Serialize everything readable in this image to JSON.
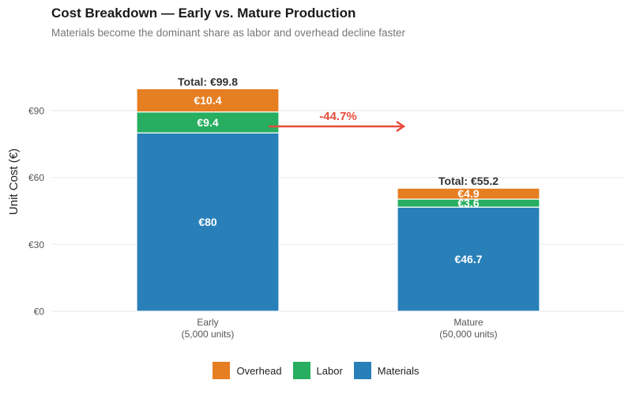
{
  "chart_data": {
    "type": "bar",
    "stacked": true,
    "title": "Cost Breakdown — Early vs. Mature Production",
    "subtitle": "Materials become the dominant share as labor and overhead decline faster",
    "xlabel": "",
    "ylabel": "Unit Cost (€)",
    "ylim": [
      0,
      105
    ],
    "yticks": [
      0,
      30,
      60,
      90
    ],
    "ytick_labels": [
      "€0",
      "€30",
      "€60",
      "€90"
    ],
    "grid": true,
    "legend_position": "bottom",
    "categories": [
      "Early",
      "Mature"
    ],
    "category_sublabels": [
      "(5,000 units)",
      "(50,000 units)"
    ],
    "series": [
      {
        "name": "Materials",
        "values": [
          80,
          46.7
        ],
        "labels": [
          "€80",
          "€46.7"
        ],
        "color": "#2980b9"
      },
      {
        "name": "Labor",
        "values": [
          9.4,
          3.6
        ],
        "labels": [
          "€9.4",
          "€3.6"
        ],
        "color": "#27ae60"
      },
      {
        "name": "Overhead",
        "values": [
          10.4,
          4.9
        ],
        "labels": [
          "€10.4",
          "€4.9"
        ],
        "color": "#e67e22"
      }
    ],
    "legend_order": [
      "Overhead",
      "Labor",
      "Materials"
    ],
    "totals": [
      "Total: €99.8",
      "Total: €55.2"
    ],
    "annotation": {
      "text": "-44.7%",
      "color": "#e74c3c"
    }
  }
}
